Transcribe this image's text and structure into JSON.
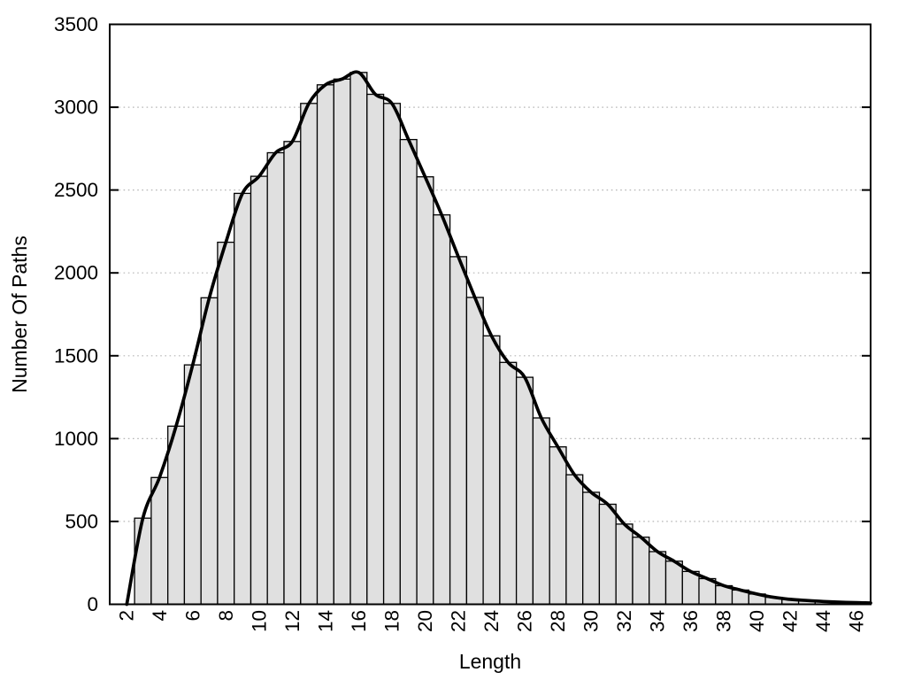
{
  "chart_data": {
    "type": "bar",
    "title": "",
    "xlabel": "Length",
    "ylabel": "Number Of Paths",
    "x": [
      3,
      4,
      5,
      6,
      7,
      8,
      9,
      10,
      11,
      12,
      13,
      14,
      15,
      16,
      17,
      18,
      19,
      20,
      21,
      22,
      23,
      24,
      25,
      26,
      27,
      28,
      29,
      30,
      31,
      32,
      33,
      34,
      35,
      36,
      37,
      38,
      39,
      40,
      41,
      42,
      43,
      44,
      45,
      46
    ],
    "values": [
      520,
      765,
      1075,
      1445,
      1850,
      2185,
      2480,
      2583,
      2725,
      2793,
      3023,
      3135,
      3170,
      3210,
      3078,
      3023,
      2805,
      2580,
      2350,
      2098,
      1852,
      1620,
      1460,
      1370,
      1125,
      950,
      782,
      676,
      604,
      484,
      405,
      318,
      260,
      198,
      155,
      112,
      86,
      62,
      42,
      30,
      23,
      17,
      13,
      10
    ],
    "bar_width": 1,
    "curve": {
      "style": "smooth spline through bar tops",
      "prepend_point": [
        2.03,
        0
      ],
      "append_point": [
        46.84,
        8
      ]
    },
    "xlim": [
      1,
      46.84
    ],
    "ylim": [
      0,
      3500
    ],
    "x_ticks": [
      2,
      4,
      6,
      8,
      10,
      12,
      14,
      16,
      18,
      20,
      22,
      24,
      26,
      28,
      30,
      32,
      34,
      36,
      38,
      40,
      42,
      44,
      46
    ],
    "y_ticks": [
      0,
      500,
      1000,
      1500,
      2000,
      2500,
      3000,
      3500
    ],
    "grid": "horizontal dotted lines at y ticks",
    "legend": "none",
    "x_tick_label_rotation": -90,
    "colors": {
      "bar_fill": "#e0e0e0",
      "bar_stroke": "#000000",
      "curve": "#000000",
      "grid_dots": "#b5b5b5",
      "frame": "#000000",
      "background": "#ffffff",
      "text": "#000000"
    }
  }
}
